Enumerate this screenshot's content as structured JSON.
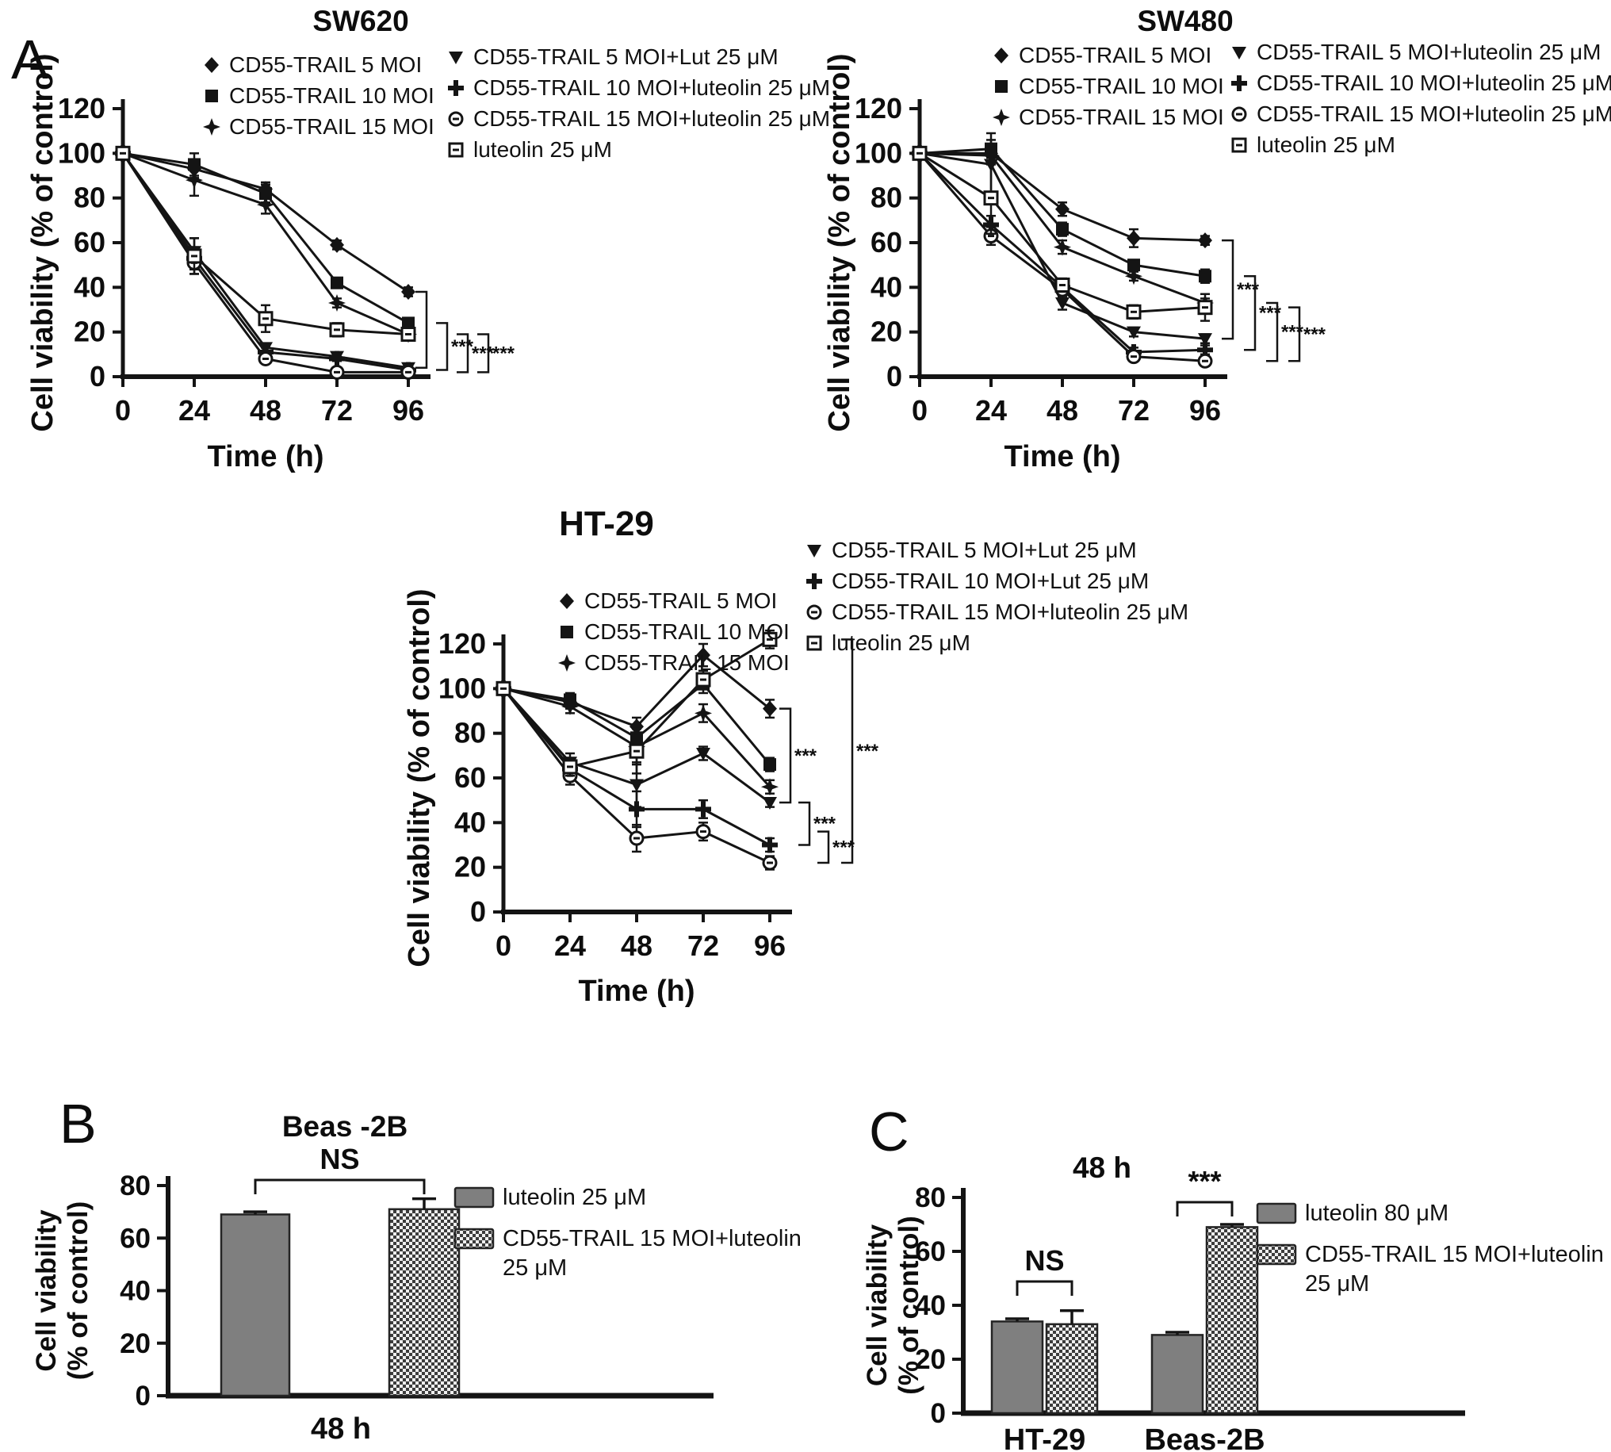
{
  "panels": {
    "a": "A",
    "b": "B",
    "c": "C"
  },
  "shared": {
    "accent_color": "#141414",
    "bar_solid_color": "#7f7f7f",
    "bar_checker_color": "#3c3c3c"
  },
  "chart_data": [
    {
      "id": "sw620",
      "type": "line",
      "title": "SW620",
      "xlabel": "Time (h)",
      "ylabel": "Cell viability (% of control)",
      "x": [
        0,
        24,
        48,
        72,
        96
      ],
      "ylim": [
        0,
        120
      ],
      "yticks": [
        0,
        20,
        40,
        60,
        80,
        100,
        120
      ],
      "legend_position": "top",
      "grid": false,
      "series": [
        {
          "name": "CD55-TRAIL 5 MOI",
          "marker": "diamond",
          "values": [
            100,
            93,
            84,
            59,
            38
          ],
          "err": [
            0,
            4,
            3,
            2,
            2
          ]
        },
        {
          "name": "CD55-TRAIL 10 MOI",
          "marker": "square",
          "values": [
            100,
            95,
            82,
            42,
            24
          ],
          "err": [
            0,
            5,
            4,
            2,
            2
          ]
        },
        {
          "name": "CD55-TRAIL 15 MOI",
          "marker": "star",
          "values": [
            100,
            88,
            77,
            33,
            19
          ],
          "err": [
            0,
            7,
            4,
            2,
            2
          ]
        },
        {
          "name": "CD55-TRAIL 5 MOI+Lut 25 μM",
          "marker": "tridown",
          "values": [
            100,
            56,
            13,
            9,
            4
          ],
          "err": [
            0,
            6,
            2,
            1,
            1
          ]
        },
        {
          "name": "CD55-TRAIL 10 MOI+luteolin 25 μM",
          "marker": "plus",
          "values": [
            100,
            53,
            11,
            8,
            3
          ],
          "err": [
            0,
            5,
            2,
            1,
            1
          ]
        },
        {
          "name": "CD55-TRAIL 15 MOI+luteolin 25 μM",
          "marker": "circleopen",
          "values": [
            100,
            51,
            8,
            2,
            2
          ],
          "err": [
            0,
            5,
            2,
            1,
            1
          ]
        },
        {
          "name": "luteolin 25 μM",
          "marker": "squareopen",
          "values": [
            100,
            54,
            26,
            21,
            19
          ],
          "err": [
            0,
            8,
            6,
            3,
            2
          ]
        }
      ],
      "legend_columns": [
        [
          0,
          1,
          2
        ],
        [
          3,
          4,
          5,
          6
        ]
      ],
      "annotations": [
        {
          "y1": 38,
          "y2": 4,
          "off": 0,
          "label": ""
        },
        {
          "y1": 24,
          "y2": 3,
          "off": 26,
          "label": "***"
        },
        {
          "y1": 19,
          "y2": 2,
          "off": 52,
          "label": "***"
        },
        {
          "y1": 19,
          "y2": 2,
          "off": 78,
          "label": "***"
        }
      ]
    },
    {
      "id": "sw480",
      "type": "line",
      "title": "SW480",
      "xlabel": "Time (h)",
      "ylabel": "Cell viability (% of control)",
      "x": [
        0,
        24,
        48,
        72,
        96
      ],
      "ylim": [
        0,
        120
      ],
      "yticks": [
        0,
        20,
        40,
        60,
        80,
        100,
        120
      ],
      "legend_position": "top",
      "grid": false,
      "series": [
        {
          "name": "CD55-TRAIL 5 MOI",
          "marker": "diamond",
          "values": [
            100,
            100,
            75,
            62,
            61
          ],
          "err": [
            0,
            3,
            3,
            4,
            2
          ]
        },
        {
          "name": "CD55-TRAIL 10 MOI",
          "marker": "square",
          "values": [
            100,
            102,
            66,
            50,
            45
          ],
          "err": [
            0,
            4,
            3,
            2,
            3
          ]
        },
        {
          "name": "CD55-TRAIL 15 MOI",
          "marker": "star",
          "values": [
            100,
            99,
            58,
            45,
            33
          ],
          "err": [
            0,
            4,
            3,
            2,
            2
          ]
        },
        {
          "name": "CD55-TRAIL 5 MOI+luteolin 25 μM",
          "marker": "tridown",
          "values": [
            100,
            95,
            33,
            20,
            17
          ],
          "err": [
            0,
            14,
            3,
            2,
            2
          ]
        },
        {
          "name": "CD55-TRAIL 10 MOI+luteolin 25 μM",
          "marker": "plus",
          "values": [
            100,
            68,
            40,
            11,
            12
          ],
          "err": [
            0,
            4,
            3,
            2,
            2
          ]
        },
        {
          "name": "CD55-TRAIL 15 MOI+luteolin 25 μM",
          "marker": "circleopen",
          "values": [
            100,
            63,
            39,
            9,
            7
          ],
          "err": [
            0,
            4,
            3,
            2,
            2
          ]
        },
        {
          "name": "luteolin 25 μM",
          "marker": "squareopen",
          "values": [
            100,
            80,
            41,
            29,
            31
          ],
          "err": [
            0,
            16,
            3,
            3,
            6
          ]
        }
      ],
      "legend_columns": [
        [
          0,
          1,
          2
        ],
        [
          3,
          4,
          5,
          6
        ]
      ],
      "annotations": [
        {
          "y1": 61,
          "y2": 17,
          "off": 0,
          "label": "***"
        },
        {
          "y1": 45,
          "y2": 12,
          "off": 28,
          "label": "***"
        },
        {
          "y1": 33,
          "y2": 7,
          "off": 56,
          "label": "***"
        },
        {
          "y1": 31,
          "y2": 7,
          "off": 84,
          "label": "***"
        }
      ]
    },
    {
      "id": "ht29",
      "type": "line",
      "title": "HT-29",
      "xlabel": "Time (h)",
      "ylabel": "Cell viability (% of control)",
      "x": [
        0,
        24,
        48,
        72,
        96
      ],
      "ylim": [
        0,
        120
      ],
      "yticks": [
        0,
        20,
        40,
        60,
        80,
        100,
        120
      ],
      "legend_position": "top",
      "grid": false,
      "series": [
        {
          "name": "CD55-TRAIL 5 MOI",
          "marker": "diamond",
          "values": [
            100,
            94,
            83,
            115,
            91
          ],
          "err": [
            0,
            3,
            4,
            5,
            4
          ]
        },
        {
          "name": "CD55-TRAIL 10 MOI",
          "marker": "square",
          "values": [
            100,
            95,
            78,
            102,
            66
          ],
          "err": [
            0,
            3,
            6,
            4,
            3
          ]
        },
        {
          "name": "CD55-TRAIL 15 MOI",
          "marker": "star",
          "values": [
            100,
            92,
            74,
            89,
            56
          ],
          "err": [
            0,
            3,
            8,
            4,
            3
          ]
        },
        {
          "name": "CD55-TRAIL 5 MOI+Lut 25 μM",
          "marker": "tridown",
          "values": [
            100,
            67,
            57,
            71,
            49
          ],
          "err": [
            0,
            4,
            10,
            3,
            2
          ]
        },
        {
          "name": "CD55-TRAIL 10 MOI+Lut 25 μM",
          "marker": "plus",
          "values": [
            100,
            64,
            46,
            46,
            30
          ],
          "err": [
            0,
            3,
            8,
            4,
            3
          ]
        },
        {
          "name": "CD55-TRAIL 15 MOI+luteolin 25 μM",
          "marker": "circleopen",
          "values": [
            100,
            61,
            33,
            36,
            22
          ],
          "err": [
            0,
            4,
            6,
            4,
            3
          ]
        },
        {
          "name": "luteolin 25 μM",
          "marker": "squareopen",
          "values": [
            100,
            65,
            72,
            104,
            122
          ],
          "err": [
            0,
            4,
            10,
            4,
            4
          ]
        }
      ],
      "legend_columns": [
        [
          0,
          1,
          2
        ],
        [
          3,
          4,
          5,
          6
        ]
      ],
      "annotations": [
        {
          "y1": 91,
          "y2": 49,
          "off": 0,
          "label": "***"
        },
        {
          "y1": 49,
          "y2": 30,
          "off": 24,
          "label": "***"
        },
        {
          "y1": 36,
          "y2": 22,
          "off": 48,
          "label": "***"
        },
        {
          "y1": 122,
          "y2": 22,
          "off": 78,
          "label": "***"
        }
      ]
    },
    {
      "id": "beas2b",
      "type": "bar",
      "title": "Beas -2B",
      "sig": "NS",
      "xlabel": "48 h",
      "ylabel_line1": "Cell viability",
      "ylabel_line2": "(% of control)",
      "ylim": [
        0,
        80
      ],
      "yticks": [
        0,
        20,
        40,
        60,
        80
      ],
      "series": [
        {
          "name": "luteolin 25 μM",
          "style": "solid",
          "value": 69,
          "err": 1
        },
        {
          "name": "CD55-TRAIL 15 MOI+luteolin 25 μM",
          "style": "checker",
          "value": 71,
          "err": 4
        }
      ]
    },
    {
      "id": "c48",
      "type": "grouped-bar",
      "title": "48 h",
      "ylabel_line1": "Cell viability",
      "ylabel_line2": "(% of control)",
      "ylim": [
        0,
        80
      ],
      "yticks": [
        0,
        20,
        40,
        60,
        80
      ],
      "categories": [
        "HT-29",
        "Beas-2B"
      ],
      "series": [
        {
          "name": "luteolin 80 μM",
          "style": "solid",
          "values": [
            34,
            29
          ],
          "err": [
            1,
            1
          ]
        },
        {
          "name": "CD55-TRAIL 15 MOI+luteolin 25 μM",
          "style": "checker",
          "values": [
            33,
            69
          ],
          "err": [
            5,
            1
          ]
        }
      ],
      "sig": [
        {
          "category": "HT-29",
          "label": "NS"
        },
        {
          "category": "Beas-2B",
          "label": "***"
        }
      ]
    }
  ]
}
